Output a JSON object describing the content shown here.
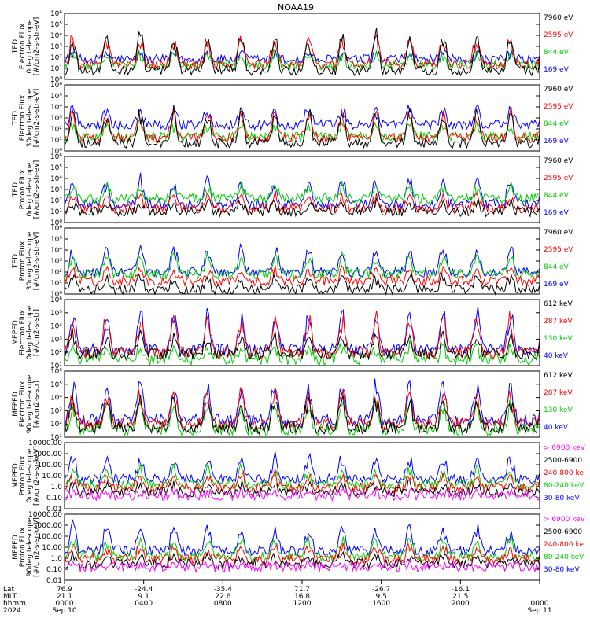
{
  "title": "NOAA19",
  "colors": {
    "black": "#000000",
    "blue": "#0000ff",
    "green": "#00cc00",
    "red": "#ff0000",
    "magenta": "#ff00ff"
  },
  "chart_data": [
    {
      "type": "line",
      "ylabel": [
        "TED",
        "Electron Flux",
        "0deg telescope",
        "[#/cm2-s-str-eV]"
      ],
      "yticks": [
        "10⁰",
        "10¹",
        "10²",
        "10³",
        "10⁴",
        "10⁵",
        "10⁶"
      ],
      "ylim": [
        0,
        6
      ],
      "series": [
        {
          "name": "7960 eV",
          "color": "black"
        },
        {
          "name": "2595 eV",
          "color": "red"
        },
        {
          "name": "844 eV",
          "color": "green"
        },
        {
          "name": "169 eV",
          "color": "blue"
        }
      ],
      "levels": [
        0.8,
        1.4,
        1.3,
        1.8
      ],
      "peaks": [
        4.6,
        4.2,
        2.5,
        2.5
      ]
    },
    {
      "type": "line",
      "ylabel": [
        "TED",
        "Electron Flux",
        "30deg telescope",
        "[#/cm2-s-str-eV]"
      ],
      "yticks": [
        "10⁰",
        "10¹",
        "10²",
        "10³",
        "10⁴",
        "10⁵",
        "10⁶"
      ],
      "ylim": [
        0,
        6
      ],
      "series": [
        {
          "name": "7960 eV",
          "color": "black"
        },
        {
          "name": "2595 eV",
          "color": "red"
        },
        {
          "name": "844 eV",
          "color": "green"
        },
        {
          "name": "169 eV",
          "color": "blue"
        }
      ],
      "levels": [
        0.7,
        1.2,
        1.3,
        2.4
      ],
      "peaks": [
        4.0,
        3.8,
        2.6,
        4.2
      ]
    },
    {
      "type": "line",
      "ylabel": [
        "TED",
        "Proton Flux",
        "0deg telescope",
        "[#/cm2-s-str-eV]"
      ],
      "yticks": [
        "10⁰",
        "10¹",
        "10²",
        "10³",
        "10⁴",
        "10⁵",
        "10⁶"
      ],
      "ylim": [
        0,
        6
      ],
      "series": [
        {
          "name": "7960 eV",
          "color": "black"
        },
        {
          "name": "2595 eV",
          "color": "red"
        },
        {
          "name": "844 eV",
          "color": "green"
        },
        {
          "name": "169 eV",
          "color": "blue"
        }
      ],
      "levels": [
        1.0,
        1.3,
        2.2,
        1.7
      ],
      "peaks": [
        2.0,
        2.6,
        3.4,
        4.2
      ]
    },
    {
      "type": "line",
      "ylabel": [
        "TED",
        "Proton Flux",
        "30deg telescope",
        "[#/cm2-s-str-eV]"
      ],
      "yticks": [
        "10⁰",
        "10¹",
        "10²",
        "10³",
        "10⁴",
        "10⁵",
        "10⁶"
      ],
      "ylim": [
        0,
        6
      ],
      "series": [
        {
          "name": "7960 eV",
          "color": "black"
        },
        {
          "name": "2595 eV",
          "color": "red"
        },
        {
          "name": "844 eV",
          "color": "green"
        },
        {
          "name": "169 eV",
          "color": "blue"
        }
      ],
      "levels": [
        0.4,
        1.2,
        1.8,
        2.0
      ],
      "peaks": [
        1.8,
        2.4,
        3.6,
        4.4
      ]
    },
    {
      "type": "line",
      "ylabel": [
        "MEPED",
        "Electron Flux",
        "0deg telescope",
        "[#/cm2-s-str]"
      ],
      "yticks": [
        "10¹",
        "10²",
        "10³",
        "10⁴",
        "10⁵",
        "10⁶"
      ],
      "ylim": [
        1,
        6
      ],
      "series": [
        {
          "name": "612 keV",
          "color": "black"
        },
        {
          "name": "287 keV",
          "color": "red"
        },
        {
          "name": "130 keV",
          "color": "green"
        },
        {
          "name": "40 keV",
          "color": "blue"
        }
      ],
      "levels": [
        1.9,
        2.0,
        1.5,
        2.2
      ],
      "peaks": [
        3.6,
        5.0,
        2.6,
        5.3
      ]
    },
    {
      "type": "line",
      "ylabel": [
        "MEPED",
        "Electron Flux",
        "90deg telescope",
        "[#/cm2-s-str]"
      ],
      "yticks": [
        "10¹",
        "10²",
        "10³",
        "10⁴",
        "10⁵",
        "10⁶"
      ],
      "ylim": [
        1,
        6
      ],
      "series": [
        {
          "name": "612 keV",
          "color": "black"
        },
        {
          "name": "287 keV",
          "color": "red"
        },
        {
          "name": "130 keV",
          "color": "green"
        },
        {
          "name": "40 keV",
          "color": "blue"
        }
      ],
      "levels": [
        1.7,
        2.0,
        1.6,
        2.3
      ],
      "peaks": [
        4.2,
        4.6,
        3.8,
        5.4
      ]
    },
    {
      "type": "line",
      "ylabel": [
        "MEPED",
        "Proton Flux",
        "0deg telescope",
        "[#/cm2-s-sr-keV]"
      ],
      "yticks": [
        "0.01",
        "0.10",
        "1.0",
        "10.00",
        "100.00",
        "1000.00",
        "10000.00"
      ],
      "ylim": [
        -2,
        4
      ],
      "series": [
        {
          "name": "> 6900 keV",
          "color": "magenta"
        },
        {
          "name": "2500-6900",
          "color": "black"
        },
        {
          "name": "240-800 ke",
          "color": "red"
        },
        {
          "name": "80-240 keV",
          "color": "green"
        },
        {
          "name": "30-80 keV",
          "color": "blue"
        }
      ],
      "levels": [
        -0.8,
        -0.5,
        -0.1,
        0.2,
        0.7
      ],
      "peaks": [
        -0.5,
        0.3,
        1.3,
        1.8,
        3.1
      ]
    },
    {
      "type": "line",
      "ylabel": [
        "MEPED",
        "Proton Flux",
        "90deg telescope",
        "[#/cm2-s-sr-keV]"
      ],
      "yticks": [
        "0.01",
        "0.10",
        "1.0",
        "10.00",
        "100.00",
        "1000.00",
        "10000.00"
      ],
      "ylim": [
        -2,
        4
      ],
      "series": [
        {
          "name": "> 6900 keV",
          "color": "magenta"
        },
        {
          "name": "2500-6900",
          "color": "black"
        },
        {
          "name": "240-800 ke",
          "color": "red"
        },
        {
          "name": "80-240 keV",
          "color": "green"
        },
        {
          "name": "30-80 keV",
          "color": "blue"
        }
      ],
      "levels": [
        -0.8,
        -0.5,
        -0.1,
        0.2,
        0.7
      ],
      "peaks": [
        -0.5,
        0.3,
        1.3,
        1.9,
        3.2
      ]
    }
  ],
  "xaxis": {
    "row_labels": [
      "Lat",
      "MLT",
      "hhmm",
      "2024"
    ],
    "ticks": [
      {
        "hour": 0,
        "lat": "76.9",
        "mlt": "21.1",
        "hhmm": "0000",
        "date": "Sep 10"
      },
      {
        "hour": 4,
        "lat": "-24.4",
        "mlt": "9.1",
        "hhmm": "0400",
        "date": ""
      },
      {
        "hour": 8,
        "lat": "-35.4",
        "mlt": "22.6",
        "hhmm": "0800",
        "date": ""
      },
      {
        "hour": 12,
        "lat": "71.7",
        "mlt": "16.8",
        "hhmm": "1200",
        "date": ""
      },
      {
        "hour": 16,
        "lat": "-26.7",
        "mlt": "9.5",
        "hhmm": "1600",
        "date": ""
      },
      {
        "hour": 20,
        "lat": "-16.1",
        "mlt": "21.5",
        "hhmm": "2000",
        "date": ""
      },
      {
        "hour": 24,
        "lat": "",
        "mlt": "",
        "hhmm": "0000",
        "date": "Sep 11"
      }
    ],
    "hours": 24
  }
}
